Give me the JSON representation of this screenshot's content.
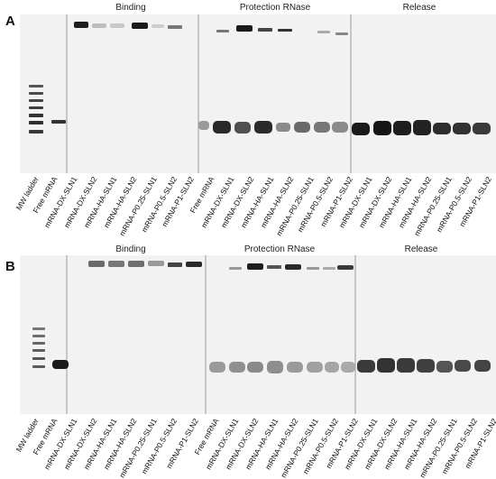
{
  "panels": [
    {
      "letter": "A",
      "sections": [
        "Binding",
        "Protection RNase",
        "Release"
      ],
      "lanes": [
        "MW ladder",
        "Free mRNA",
        "mRNA-DX-SLN1",
        "mRNA-DX-SLN2",
        "mRNA-HA-SLN1",
        "mRNA-HA-SLN2",
        "mRNA-P0.25-SLN1",
        "mRNA-P0.5-SLN2",
        "mRNA-P1-SLN2",
        "Free mRNA",
        "mRNA-DX-SLN1",
        "mRNA-DX-SLN2",
        "mRNA-HA-SLN1",
        "mRNA-HA-SLN2",
        "mRNA-P0.25-SLN1",
        "mRNA-P0.5-SLN2",
        "mRNA-P1-SLN2",
        "mRNA-DX-SLN1",
        "mRNA-DX-SLN2",
        "mRNA-HA-SLN1",
        "mRNA-HA-SLN2",
        "mRNA-P0.25-SLN1",
        "mRNA-P0.5-SLN2",
        "mRNA-P1-SLN2"
      ]
    },
    {
      "letter": "B",
      "sections": [
        "Binding",
        "Protection RNase",
        "Release"
      ],
      "lanes": [
        "MW ladder",
        "Free mRNA",
        "mRNA-DX-SLN1",
        "mRNA-DX-SLN2",
        "mRNA-HA-SLN1",
        "mRNA-HA-SLN2",
        "mRNA-P0.25-SLN1",
        "mRNA-P0.5-SLN2",
        "mRNA-P1-SLN2",
        "Free mRNA",
        "mRNA-DX-SLN1",
        "mRNA-DX-SLN2",
        "mRNA-HA-SLN1",
        "mRNA-HA-SLN2",
        "mRNA-P0.25-SLN1",
        "mRNA-P0.5-SLN2",
        "mRNA-P1-SLN2",
        "mRNA-DX-SLN1",
        "mRNA-DX-SLN2",
        "mRNA-HA-SLN1",
        "mRNA-HA-SLN2",
        "mRNA-P0.25-SLN1",
        "mRNA-P0.5-SLN2",
        "mRNA-P1-SLN2"
      ]
    }
  ]
}
